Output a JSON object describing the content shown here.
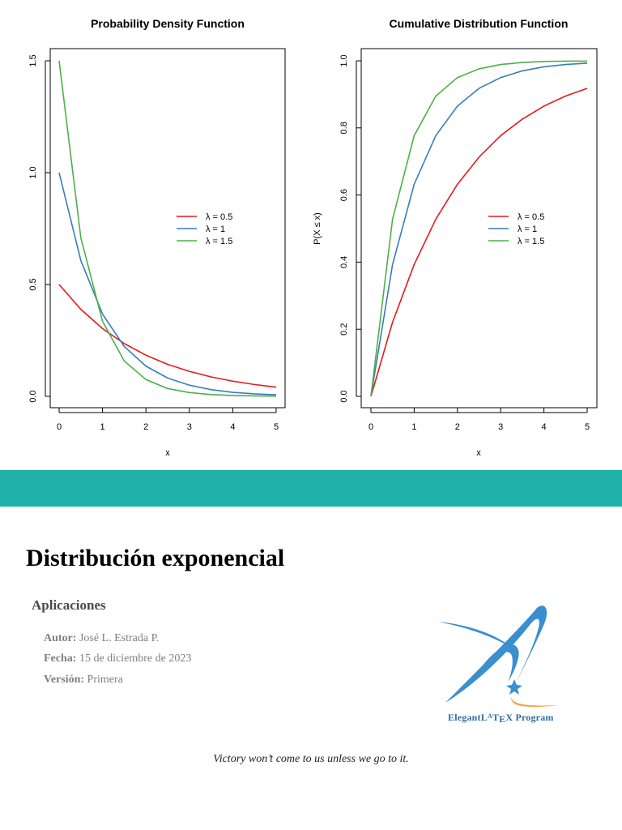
{
  "chart_data": [
    {
      "type": "line",
      "title": "Probability Density Function",
      "xlabel": "x",
      "ylabel": "",
      "xlim": [
        0,
        5
      ],
      "ylim": [
        0,
        1.5
      ],
      "xticks": [
        "0",
        "1",
        "2",
        "3",
        "4",
        "5"
      ],
      "yticks": [
        "0.0",
        "0.5",
        "1.0",
        "1.5"
      ],
      "legend_position": "right",
      "grid": false,
      "x": [
        0,
        0.5,
        1,
        1.5,
        2,
        2.5,
        3,
        3.5,
        4,
        4.5,
        5
      ],
      "series": [
        {
          "name": "λ = 0.5",
          "color": "#e41a1c",
          "values": [
            0.5,
            0.389,
            0.303,
            0.236,
            0.184,
            0.143,
            0.112,
            0.087,
            0.068,
            0.053,
            0.041
          ]
        },
        {
          "name": "λ = 1",
          "color": "#377eb8",
          "values": [
            1.0,
            0.607,
            0.368,
            0.223,
            0.135,
            0.082,
            0.05,
            0.03,
            0.018,
            0.011,
            0.007
          ]
        },
        {
          "name": "λ = 1.5",
          "color": "#4daf4a",
          "values": [
            1.5,
            0.709,
            0.335,
            0.158,
            0.075,
            0.035,
            0.017,
            0.008,
            0.004,
            0.002,
            0.001
          ]
        }
      ]
    },
    {
      "type": "line",
      "title": "Cumulative Distribution Function",
      "xlabel": "x",
      "ylabel": "P(X ≤ x)",
      "xlim": [
        0,
        5
      ],
      "ylim": [
        0,
        1
      ],
      "xticks": [
        "0",
        "1",
        "2",
        "3",
        "4",
        "5"
      ],
      "yticks": [
        "0.0",
        "0.2",
        "0.4",
        "0.6",
        "0.8",
        "1.0"
      ],
      "legend_position": "right",
      "grid": false,
      "x": [
        0,
        0.5,
        1,
        1.5,
        2,
        2.5,
        3,
        3.5,
        4,
        4.5,
        5
      ],
      "series": [
        {
          "name": "λ = 0.5",
          "color": "#e41a1c",
          "values": [
            0,
            0.221,
            0.393,
            0.528,
            0.632,
            0.713,
            0.777,
            0.826,
            0.865,
            0.895,
            0.918
          ]
        },
        {
          "name": "λ = 1",
          "color": "#377eb8",
          "values": [
            0,
            0.393,
            0.632,
            0.777,
            0.865,
            0.918,
            0.95,
            0.97,
            0.982,
            0.989,
            0.993
          ]
        },
        {
          "name": "λ = 1.5",
          "color": "#4daf4a",
          "values": [
            0,
            0.528,
            0.777,
            0.895,
            0.95,
            0.976,
            0.989,
            0.995,
            0.998,
            0.999,
            0.999
          ]
        }
      ]
    }
  ],
  "document": {
    "title": "Distribución exponencial",
    "subtitle": "Aplicaciones",
    "author_label": "Autor:",
    "author": "José L. Estrada P.",
    "date_label": "Fecha:",
    "date": "15 de diciembre de 2023",
    "version_label": "Versión:",
    "version": "Primera",
    "quote": "Victory won’t come to us unless we go to it.",
    "logo_text": "ElegantLATEX Program"
  },
  "colors": {
    "band": "#20b2aa",
    "logo_blue": "#3a8fd0",
    "logo_orange": "#f4a340"
  }
}
